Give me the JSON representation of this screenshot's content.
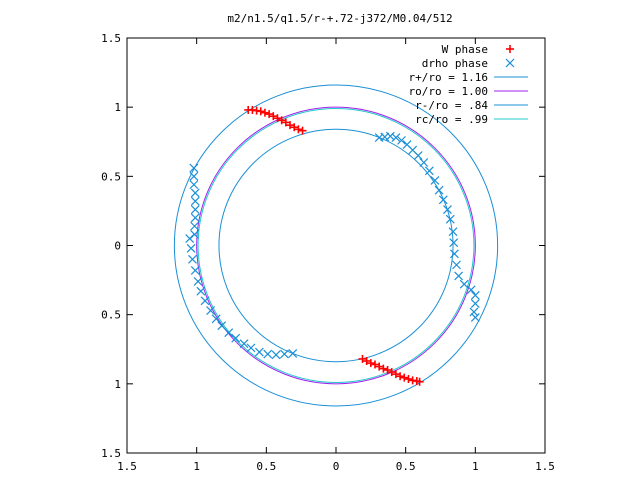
{
  "chart_data": {
    "type": "scatter",
    "title": "m2/n1.5/q1.5/r-+.72-j372/M0.04/512",
    "xlim": [
      -1.5,
      1.5
    ],
    "ylim": [
      -1.5,
      1.5
    ],
    "x_ticks": [
      {
        "value": -1.5,
        "label": "1.5"
      },
      {
        "value": -1.0,
        "label": "1"
      },
      {
        "value": -0.5,
        "label": "0.5"
      },
      {
        "value": 0.0,
        "label": "0"
      },
      {
        "value": 0.5,
        "label": "0.5"
      },
      {
        "value": 1.0,
        "label": "1"
      },
      {
        "value": 1.5,
        "label": "1.5"
      }
    ],
    "y_ticks": [
      {
        "value": 1.5,
        "label": "1.5"
      },
      {
        "value": 1.0,
        "label": "1"
      },
      {
        "value": 0.5,
        "label": "0.5"
      },
      {
        "value": 0.0,
        "label": "0"
      },
      {
        "value": -0.5,
        "label": "0.5"
      },
      {
        "value": -1.0,
        "label": "1"
      },
      {
        "value": -1.5,
        "label": "1.5"
      }
    ],
    "grid": false,
    "legend_position": "top-right",
    "circles": [
      {
        "name": "r+/ro = 1.16",
        "radius": 1.16,
        "color": "#1b8fd6"
      },
      {
        "name": "ro/ro = 1.00",
        "radius": 1.0,
        "color": "#a020f0"
      },
      {
        "name": "r-/ro = .84",
        "radius": 0.84,
        "color": "#1b8fd6"
      },
      {
        "name": "rc/ro = .99",
        "radius": 0.99,
        "color": "#1fc9c9"
      }
    ],
    "series": [
      {
        "name": "W phase",
        "marker": "plus",
        "color": "#ff0000",
        "points": [
          [
            -0.63,
            0.98
          ],
          [
            -0.6,
            0.98
          ],
          [
            -0.57,
            0.975
          ],
          [
            -0.54,
            0.97
          ],
          [
            -0.51,
            0.96
          ],
          [
            -0.48,
            0.95
          ],
          [
            -0.45,
            0.935
          ],
          [
            -0.42,
            0.92
          ],
          [
            -0.39,
            0.905
          ],
          [
            -0.36,
            0.89
          ],
          [
            -0.33,
            0.87
          ],
          [
            -0.3,
            0.855
          ],
          [
            -0.27,
            0.84
          ],
          [
            -0.24,
            0.83
          ],
          [
            0.19,
            -0.82
          ],
          [
            0.22,
            -0.835
          ],
          [
            0.25,
            -0.85
          ],
          [
            0.28,
            -0.86
          ],
          [
            0.31,
            -0.875
          ],
          [
            0.34,
            -0.89
          ],
          [
            0.37,
            -0.9
          ],
          [
            0.4,
            -0.915
          ],
          [
            0.43,
            -0.93
          ],
          [
            0.46,
            -0.945
          ],
          [
            0.49,
            -0.955
          ],
          [
            0.52,
            -0.965
          ],
          [
            0.55,
            -0.975
          ],
          [
            0.58,
            -0.98
          ],
          [
            0.6,
            -0.985
          ]
        ]
      },
      {
        "name": "drho phase",
        "marker": "cross",
        "color": "#1b8fd6",
        "points": [
          [
            0.31,
            0.78
          ],
          [
            0.35,
            0.785
          ],
          [
            0.39,
            0.79
          ],
          [
            0.43,
            0.78
          ],
          [
            0.47,
            0.76
          ],
          [
            0.51,
            0.73
          ],
          [
            0.55,
            0.69
          ],
          [
            0.59,
            0.65
          ],
          [
            0.63,
            0.6
          ],
          [
            0.67,
            0.54
          ],
          [
            0.71,
            0.47
          ],
          [
            0.74,
            0.4
          ],
          [
            0.77,
            0.33
          ],
          [
            0.8,
            0.26
          ],
          [
            0.82,
            0.19
          ],
          [
            0.84,
            0.1
          ],
          [
            0.845,
            0.02
          ],
          [
            0.85,
            -0.06
          ],
          [
            0.865,
            -0.14
          ],
          [
            0.88,
            -0.22
          ],
          [
            0.92,
            -0.28
          ],
          [
            0.97,
            -0.32
          ],
          [
            1.0,
            -0.36
          ],
          [
            1.0,
            -0.42
          ],
          [
            0.99,
            -0.48
          ],
          [
            1.0,
            -0.52
          ],
          [
            -1.02,
            0.56
          ],
          [
            -1.02,
            0.5
          ],
          [
            -1.02,
            0.44
          ],
          [
            -1.01,
            0.38
          ],
          [
            -1.01,
            0.32
          ],
          [
            -1.01,
            0.26
          ],
          [
            -1.01,
            0.2
          ],
          [
            -1.015,
            0.14
          ],
          [
            -1.015,
            0.08
          ],
          [
            -1.05,
            0.05
          ],
          [
            -1.04,
            -0.02
          ],
          [
            -1.03,
            -0.1
          ],
          [
            -1.01,
            -0.18
          ],
          [
            -0.99,
            -0.26
          ],
          [
            -0.97,
            -0.33
          ],
          [
            -0.94,
            -0.4
          ],
          [
            -0.9,
            -0.47
          ],
          [
            -0.86,
            -0.53
          ],
          [
            -0.82,
            -0.58
          ],
          [
            -0.77,
            -0.63
          ],
          [
            -0.72,
            -0.67
          ],
          [
            -0.66,
            -0.71
          ],
          [
            -0.61,
            -0.74
          ],
          [
            -0.55,
            -0.77
          ],
          [
            -0.49,
            -0.785
          ],
          [
            -0.43,
            -0.79
          ],
          [
            -0.37,
            -0.785
          ],
          [
            -0.31,
            -0.78
          ]
        ]
      }
    ]
  }
}
